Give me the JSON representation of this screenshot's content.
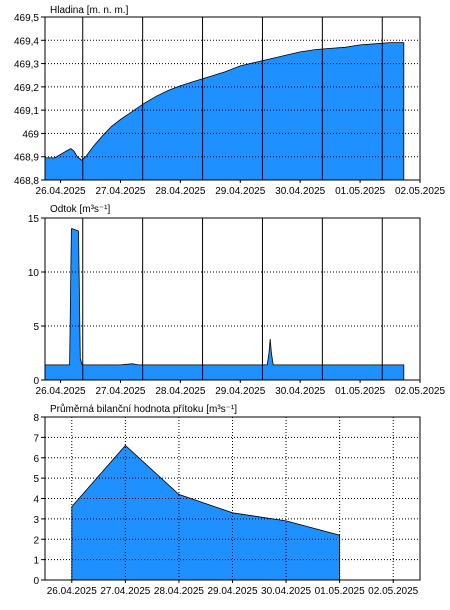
{
  "chart_data": [
    {
      "type": "area",
      "title": "Hladina [m. n. m.]",
      "x_ticks": [
        "26.04.2025",
        "27.04.2025",
        "28.04.2025",
        "29.04.2025",
        "30.04.2025",
        "01.05.2025",
        "02.05.2025"
      ],
      "y_ticks": [
        "469,5",
        "469,4",
        "469,3",
        "469,2",
        "469,1",
        "469",
        "468,9",
        "468,8"
      ],
      "ylim": [
        468.8,
        469.5
      ],
      "xlim_days": [
        -0.26,
        6.0
      ],
      "grid": true,
      "color": "#1e90ff",
      "series": [
        {
          "x": [
            -0.26,
            -0.1,
            0.0,
            0.1,
            0.17,
            0.22,
            0.28,
            0.35,
            0.42,
            0.55,
            0.7,
            0.85,
            1.0,
            1.2,
            1.4,
            1.6,
            1.8,
            2.0,
            2.25,
            2.5,
            2.75,
            3.0,
            3.25,
            3.5,
            3.75,
            4.0,
            4.25,
            4.5,
            4.75,
            5.0,
            5.25,
            5.5,
            5.73
          ],
          "y": [
            468.895,
            468.895,
            468.91,
            468.925,
            468.935,
            468.925,
            468.9,
            468.885,
            468.9,
            468.945,
            468.99,
            469.03,
            469.06,
            469.095,
            469.13,
            469.16,
            469.185,
            469.205,
            469.225,
            469.245,
            469.265,
            469.29,
            469.305,
            469.32,
            469.335,
            469.35,
            469.36,
            469.365,
            469.37,
            469.38,
            469.385,
            469.39,
            469.39
          ]
        }
      ]
    },
    {
      "type": "area",
      "title": "Odtok [m³s⁻¹]",
      "x_ticks": [
        "26.04.2025",
        "27.04.2025",
        "28.04.2025",
        "29.04.2025",
        "30.04.2025",
        "01.05.2025",
        "02.05.2025"
      ],
      "y_ticks": [
        "15",
        "10",
        "5",
        "0"
      ],
      "ylim": [
        0,
        15
      ],
      "xlim_days": [
        -0.26,
        6.0
      ],
      "grid": true,
      "color": "#1e90ff",
      "series": [
        {
          "x": [
            -0.26,
            0.0,
            0.15,
            0.18,
            0.2,
            0.3,
            0.33,
            0.36,
            0.5,
            1.0,
            1.2,
            1.3,
            1.5,
            2.0,
            3.0,
            3.45,
            3.48,
            3.5,
            3.52,
            3.55,
            3.58,
            4.0,
            5.0,
            5.73
          ],
          "y": [
            1.4,
            1.4,
            1.4,
            14.0,
            14.0,
            13.8,
            2.0,
            1.4,
            1.4,
            1.4,
            1.5,
            1.4,
            1.4,
            1.4,
            1.4,
            1.4,
            2.5,
            3.8,
            2.5,
            1.4,
            1.4,
            1.4,
            1.4,
            1.4
          ]
        }
      ]
    },
    {
      "type": "area",
      "title": "Průměrná bilanční hodnota přítoku   [m³s⁻¹]",
      "x_ticks": [
        "26.04.2025",
        "27.04.2025",
        "28.04.2025",
        "29.04.2025",
        "30.04.2025",
        "01.05.2025",
        "02.05.2025"
      ],
      "y_ticks": [
        "8",
        "7",
        "6",
        "5",
        "4",
        "3",
        "2",
        "1",
        "0"
      ],
      "ylim": [
        0,
        8
      ],
      "xlim_days": [
        -0.5,
        6.5
      ],
      "grid": true,
      "color": "#1e90ff",
      "series": [
        {
          "x": [
            0,
            1,
            2,
            3,
            4,
            5
          ],
          "y": [
            3.6,
            6.6,
            4.2,
            3.3,
            2.9,
            2.2
          ]
        }
      ]
    }
  ]
}
